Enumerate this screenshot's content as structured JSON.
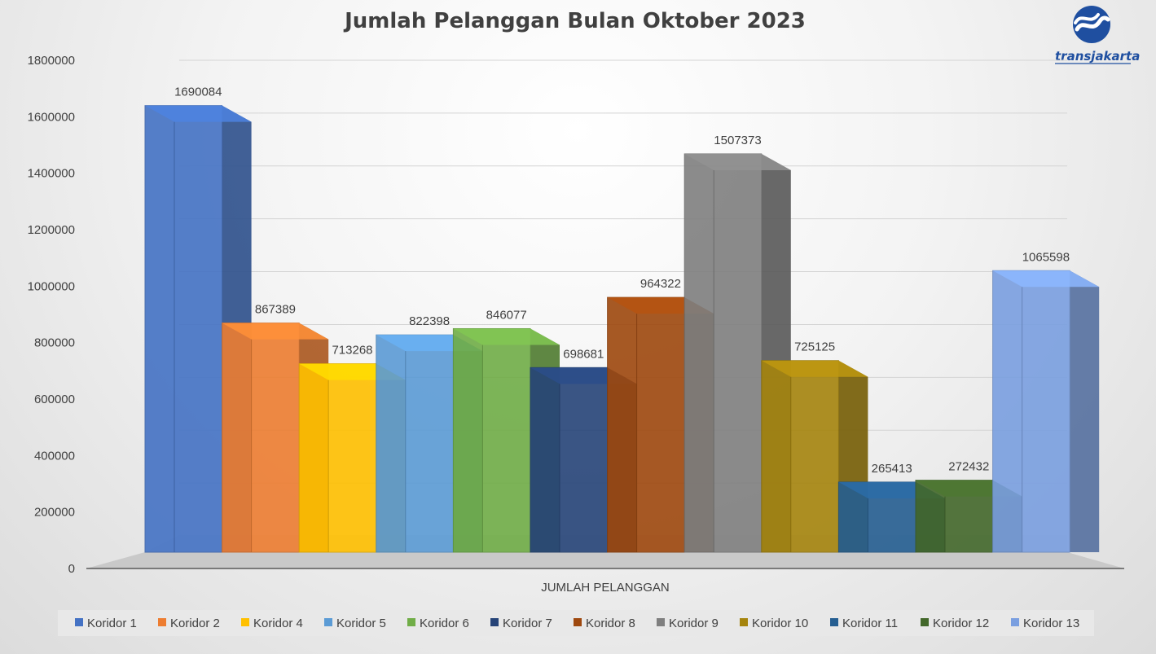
{
  "chart_data": {
    "type": "bar",
    "title": "Jumlah Pelanggan Bulan Oktober 2023",
    "xlabel": "JUMLAH PELANGGAN",
    "ylabel": "",
    "ylim": [
      0,
      1800000
    ],
    "yticks": [
      "0",
      "200000",
      "400000",
      "600000",
      "800000",
      "1000000",
      "1200000",
      "1400000",
      "1600000",
      "1800000"
    ],
    "grid": true,
    "legend_position": "bottom",
    "series": [
      {
        "name": "Koridor 1",
        "value": 1690084,
        "label": "1690084",
        "color": "#4472C4"
      },
      {
        "name": "Koridor 2",
        "value": 867389,
        "label": "867389",
        "color": "#ED7D31"
      },
      {
        "name": "Koridor 4",
        "value": 713268,
        "label": "713268",
        "color": "#FFC000"
      },
      {
        "name": "Koridor 5",
        "value": 822398,
        "label": "822398",
        "color": "#5B9BD5"
      },
      {
        "name": "Koridor 6",
        "value": 846077,
        "label": "846077",
        "color": "#70AD47"
      },
      {
        "name": "Koridor 7",
        "value": 698681,
        "label": "698681",
        "color": "#264478"
      },
      {
        "name": "Koridor 8",
        "value": 964322,
        "label": "964322",
        "color": "#9E480E"
      },
      {
        "name": "Koridor 9",
        "value": 1507373,
        "label": "1507373",
        "color": "#7F7F7F"
      },
      {
        "name": "Koridor 10",
        "value": 725125,
        "label": "725125",
        "color": "#A5840D"
      },
      {
        "name": "Koridor 11",
        "value": 265413,
        "label": "265413",
        "color": "#255E91"
      },
      {
        "name": "Koridor 12",
        "value": 272432,
        "label": "272432",
        "color": "#43682B"
      },
      {
        "name": "Koridor 13",
        "value": 1065598,
        "label": "1065598",
        "color": "#7A9FE0"
      }
    ]
  },
  "logo": {
    "text": "transjakarta",
    "icon": "transjakarta-logo-icon"
  }
}
